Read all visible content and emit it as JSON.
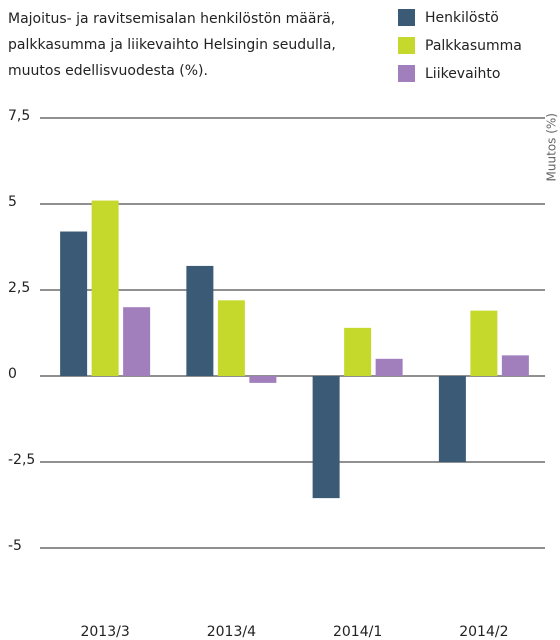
{
  "chart_data": {
    "type": "bar",
    "title": "Majoitus- ja ravitsemisalan henkilöstön määrä, palkkasumma ja liikevaihto Helsingin seudulla, muutos edellisvuodesta (%).",
    "y_label": "Muutos (%)",
    "categories": [
      "2013/3",
      "2013/4",
      "2014/1",
      "2014/2"
    ],
    "series": [
      {
        "name": "Henkilöstö",
        "color": "#3a5a75",
        "values": [
          4.2,
          3.2,
          -3.55,
          -2.5
        ]
      },
      {
        "name": "Palkkasumma",
        "color": "#c5d92d",
        "values": [
          5.1,
          2.2,
          1.4,
          1.9
        ]
      },
      {
        "name": "Liikevaihto",
        "color": "#a17fbd",
        "values": [
          2.0,
          -0.2,
          0.5,
          0.6
        ]
      }
    ],
    "ylim": [
      -5,
      7.5
    ],
    "yticks": [
      {
        "value": 7.5,
        "label": "7,5"
      },
      5,
      {
        "value": 2.5,
        "label": "2,5"
      },
      0,
      {
        "value": -2.5,
        "label": "-2,5"
      },
      -5
    ],
    "grid": true,
    "legend": "top-right"
  }
}
